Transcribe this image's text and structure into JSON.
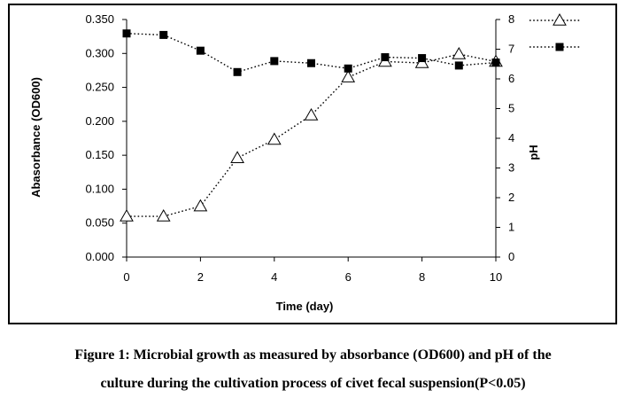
{
  "chart_data": {
    "type": "line",
    "x": [
      0,
      1,
      2,
      3,
      4,
      5,
      6,
      7,
      8,
      9,
      10
    ],
    "xlabel": "Time (day)",
    "xlim": [
      0,
      10
    ],
    "xticks": [
      "0",
      "2",
      "4",
      "6",
      "8",
      "10"
    ],
    "ylabel_left": "Abasorbance (OD600)",
    "ylim_left": [
      0,
      0.35
    ],
    "yticks_left": [
      "0.000",
      "0.050",
      "0.100",
      "0.150",
      "0.200",
      "0.250",
      "0.300",
      "0.350"
    ],
    "ylabel_right": "pH",
    "ylim_right": [
      0,
      8
    ],
    "yticks_right": [
      "0",
      "1",
      "2",
      "3",
      "4",
      "5",
      "6",
      "7",
      "8"
    ],
    "legend_position": "top-right",
    "series": [
      {
        "key": "absorbance",
        "axis": "left",
        "marker": "open-triangle",
        "line_style": "dotted",
        "values": [
          0.06,
          0.06,
          0.075,
          0.146,
          0.173,
          0.209,
          0.265,
          0.288,
          0.286,
          0.299,
          0.288
        ]
      },
      {
        "key": "ph",
        "axis": "right",
        "marker": "filled-square",
        "line_style": "dotted",
        "values": [
          7.53,
          7.48,
          6.95,
          6.23,
          6.6,
          6.53,
          6.35,
          6.73,
          6.7,
          6.45,
          6.55
        ]
      }
    ],
    "grid": false
  },
  "caption": {
    "line1": "Figure 1: Microbial growth as measured by absorbance (OD600) and pH of the",
    "line2": "culture during the cultivation process of civet fecal suspension(P<0.05)"
  }
}
